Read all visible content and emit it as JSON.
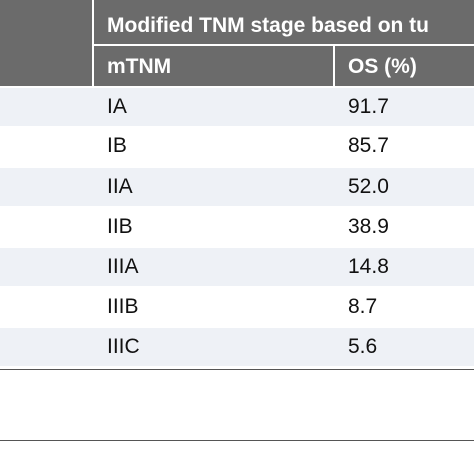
{
  "table": {
    "title": "Modified TNM stage based on tu",
    "columns": [
      "mTNM",
      "OS (%)"
    ],
    "rows": [
      {
        "stage": "IA",
        "os": "91.7"
      },
      {
        "stage": "IB",
        "os": "85.7"
      },
      {
        "stage": "IIA",
        "os": "52.0"
      },
      {
        "stage": "IIB",
        "os": "38.9"
      },
      {
        "stage": "IIIA",
        "os": "14.8"
      },
      {
        "stage": "IIIB",
        "os": "8.7"
      },
      {
        "stage": "IIIC",
        "os": "5.6"
      }
    ]
  }
}
